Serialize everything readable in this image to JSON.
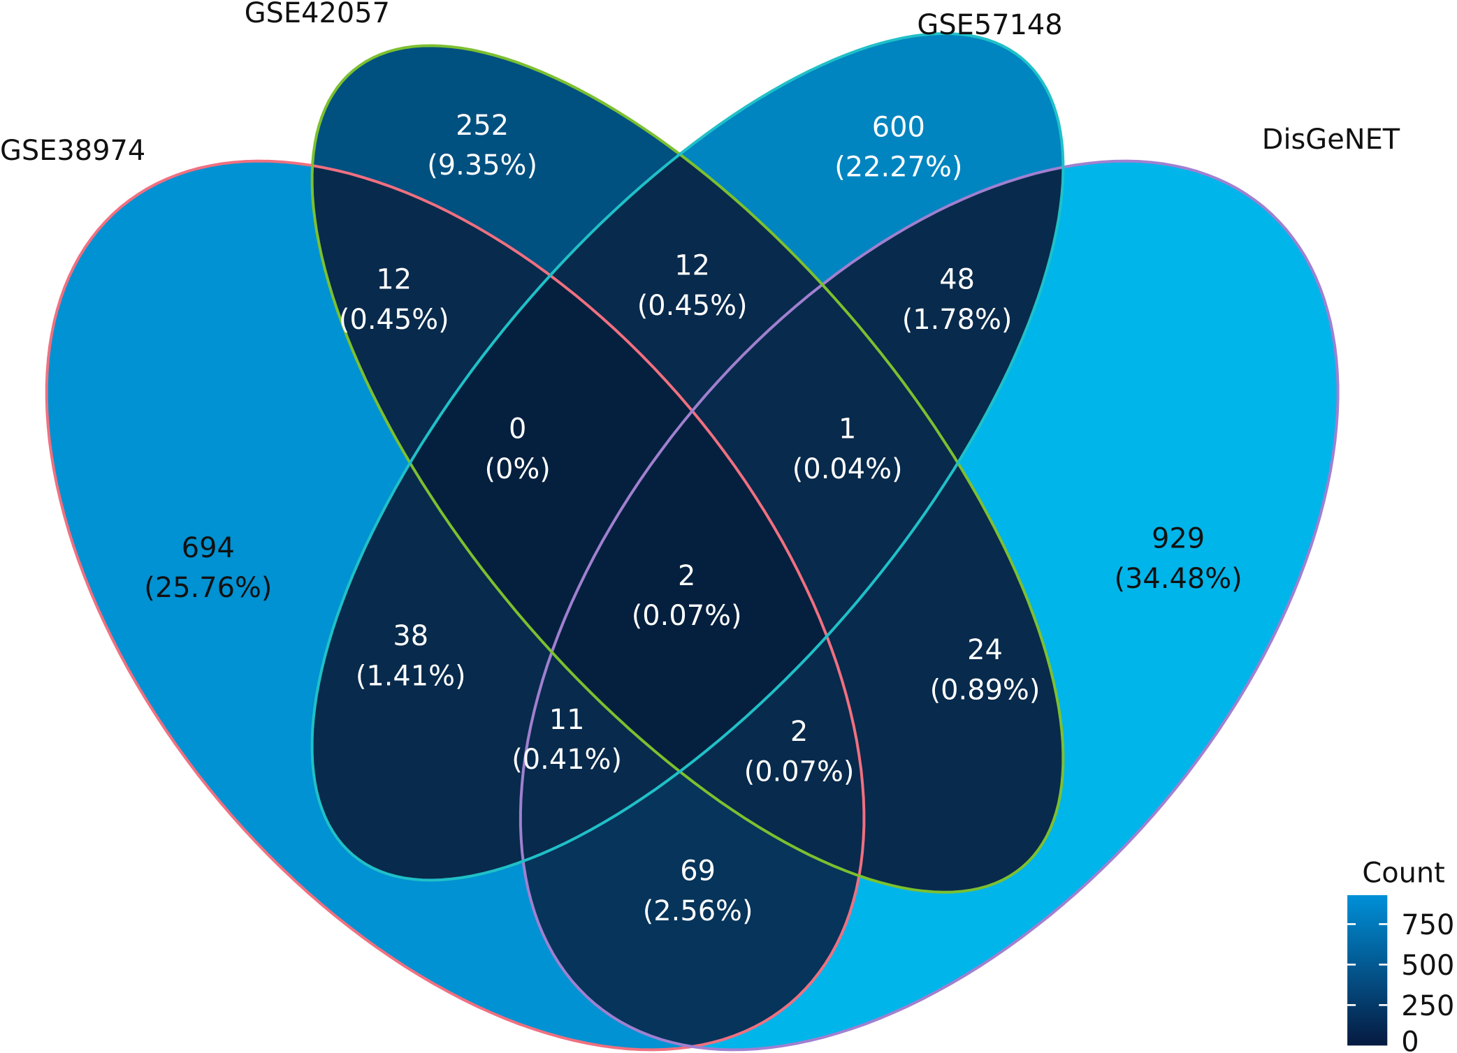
{
  "chart_data": {
    "type": "venn",
    "sets": [
      {
        "name": "GSE38974",
        "color": "#0092d2",
        "stroke": "#f07080"
      },
      {
        "name": "GSE42057",
        "color": "#005080",
        "stroke": "#7cc030"
      },
      {
        "name": "GSE57148",
        "color": "#0085c0",
        "stroke": "#20c0c8"
      },
      {
        "name": "DisGeNET",
        "color": "#00b5ea",
        "stroke": "#a080d0"
      }
    ],
    "regions": [
      {
        "sets": [
          "GSE38974"
        ],
        "count": "694",
        "percent": "(25.76%)"
      },
      {
        "sets": [
          "GSE42057"
        ],
        "count": "252",
        "percent": "(9.35%)"
      },
      {
        "sets": [
          "GSE57148"
        ],
        "count": "600",
        "percent": "(22.27%)"
      },
      {
        "sets": [
          "DisGeNET"
        ],
        "count": "929",
        "percent": "(34.48%)"
      },
      {
        "sets": [
          "GSE38974",
          "GSE42057"
        ],
        "count": "12",
        "percent": "(0.45%)"
      },
      {
        "sets": [
          "GSE42057",
          "GSE57148"
        ],
        "count": "12",
        "percent": "(0.45%)"
      },
      {
        "sets": [
          "GSE57148",
          "DisGeNET"
        ],
        "count": "48",
        "percent": "(1.78%)"
      },
      {
        "sets": [
          "GSE38974",
          "GSE42057",
          "GSE57148"
        ],
        "count": "0",
        "percent": "(0%)"
      },
      {
        "sets": [
          "GSE42057",
          "GSE57148",
          "DisGeNET"
        ],
        "count": "1",
        "percent": "(0.04%)"
      },
      {
        "sets": [
          "GSE38974",
          "GSE42057",
          "GSE57148",
          "DisGeNET"
        ],
        "count": "2",
        "percent": "(0.07%)"
      },
      {
        "sets": [
          "GSE38974",
          "GSE57148"
        ],
        "count": "38",
        "percent": "(1.41%)"
      },
      {
        "sets": [
          "GSE42057",
          "DisGeNET"
        ],
        "count": "24",
        "percent": "(0.89%)"
      },
      {
        "sets": [
          "GSE38974",
          "GSE57148",
          "DisGeNET"
        ],
        "count": "11",
        "percent": "(0.41%)"
      },
      {
        "sets": [
          "GSE38974",
          "GSE42057",
          "DisGeNET"
        ],
        "count": "2",
        "percent": "(0.07%)"
      },
      {
        "sets": [
          "GSE38974",
          "DisGeNET"
        ],
        "count": "69",
        "percent": "(2.56%)"
      }
    ],
    "legend": {
      "title": "Count",
      "ticks": [
        "750",
        "500",
        "250",
        "0"
      ],
      "range": [
        0,
        929
      ],
      "low_color": "#061a40",
      "high_color": "#0090d8",
      "placement": "bottom-right"
    }
  }
}
